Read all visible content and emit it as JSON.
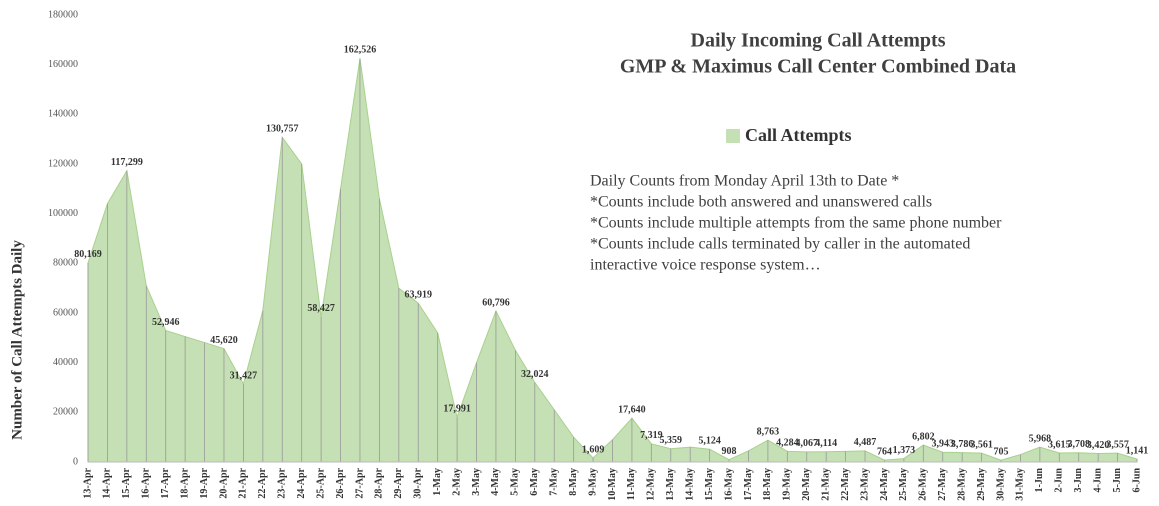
{
  "chart_data": {
    "type": "area",
    "title": "Daily Incoming Call Attempts",
    "subtitle": "GMP & Maximus Call Center Combined Data",
    "y_label": "Number of Call Attempts Daily",
    "annotation": [
      "Daily Counts from Monday April 13th to Date *",
      "*Counts include both answered and unanswered calls",
      "*Counts include multiple attempts from the same phone number",
      "*Counts include calls terminated by caller in the automated",
      "interactive voice response system…"
    ],
    "categories": [
      "13-Apr",
      "14-Apr",
      "15-Apr",
      "16-Apr",
      "17-Apr",
      "18-Apr",
      "19-Apr",
      "20-Apr",
      "21-Apr",
      "22-Apr",
      "23-Apr",
      "24-Apr",
      "25-Apr",
      "26-Apr",
      "27-Apr",
      "28-Apr",
      "29-Apr",
      "30-Apr",
      "1-May",
      "2-May",
      "3-May",
      "4-May",
      "5-May",
      "6-May",
      "7-May",
      "8-May",
      "9-May",
      "10-May",
      "11-May",
      "12-May",
      "13-May",
      "14-May",
      "15-May",
      "16-May",
      "17-May",
      "18-May",
      "19-May",
      "20-May",
      "21-May",
      "22-May",
      "23-May",
      "24-May",
      "25-May",
      "26-May",
      "27-May",
      "28-May",
      "29-May",
      "30-May",
      "31-May",
      "1-Jun",
      "2-Jun",
      "3-Jun",
      "4-Jun",
      "5-Jun",
      "6-Jun"
    ],
    "series": [
      {
        "name": "Call Attempts",
        "color": "#c5e0b4",
        "values": [
          80169,
          104000,
          117299,
          71000,
          52946,
          50500,
          48100,
          45620,
          31427,
          61000,
          130757,
          120000,
          58427,
          110000,
          162526,
          106000,
          70000,
          63919,
          52000,
          17991,
          40000,
          60796,
          45000,
          32024,
          21000,
          10000,
          1609,
          9000,
          17640,
          7319,
          5359,
          6000,
          5124,
          908,
          4500,
          8763,
          4284,
          4067,
          4114,
          4300,
          4487,
          764,
          1373,
          6802,
          3943,
          3786,
          3561,
          705,
          3000,
          5968,
          3615,
          3708,
          3420,
          3557,
          1141
        ],
        "value_labels": [
          "80,169",
          null,
          "117,299",
          null,
          "52,946",
          null,
          null,
          "45,620",
          "31,427",
          null,
          "130,757",
          null,
          "58,427",
          null,
          "162,526",
          null,
          null,
          "63,919",
          null,
          "17,991",
          null,
          "60,796",
          null,
          "32,024",
          null,
          null,
          "1,609",
          null,
          "17,640",
          "7,319",
          "5,359",
          null,
          "5,124",
          "908",
          null,
          "8,763",
          "4,284",
          "4,067",
          "4,114",
          null,
          "4,487",
          "764",
          "1,373",
          "6,802",
          "3,943",
          "3,786",
          "3,561",
          "705",
          null,
          "5,968",
          "3,615",
          "3,708",
          "3,420",
          "3,557",
          "1,141"
        ]
      }
    ],
    "ylim": [
      0,
      180000
    ],
    "yticks": [
      0,
      20000,
      40000,
      60000,
      80000,
      100000,
      120000,
      140000,
      160000,
      180000
    ],
    "grid": false
  }
}
